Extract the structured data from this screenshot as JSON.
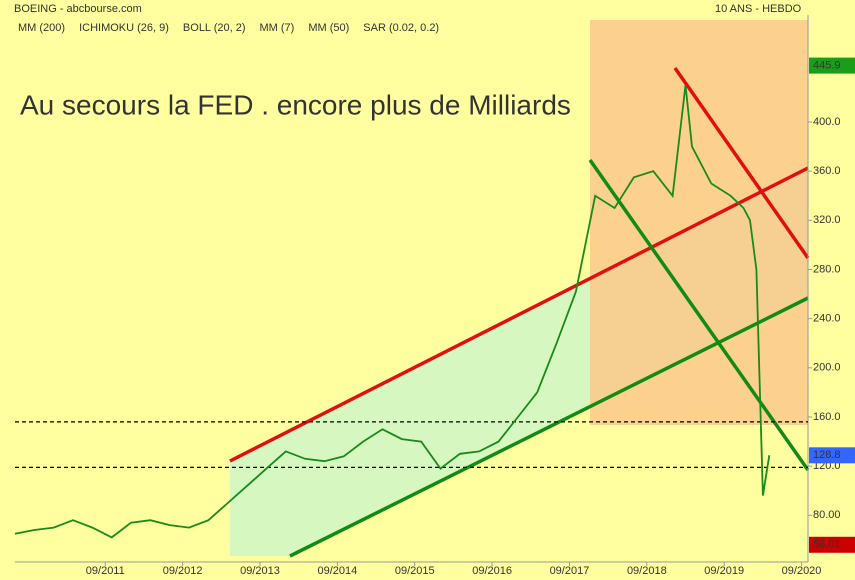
{
  "chart_data": {
    "type": "line",
    "title": "BOEING - abcbourse.com",
    "subtitle": "10 ANS - HEBDO",
    "annotation": "Au secours la FED . encore plus de Milliards",
    "indicators": [
      {
        "name": "MM (200)",
        "color": "#0000cc"
      },
      {
        "name": "ICHIMOKU (26, 9)",
        "color": "#1a1aa0"
      },
      {
        "name": "BOLL (20, 2)",
        "color": "#f0a030"
      },
      {
        "name": "MM (7)",
        "color": "#118811"
      },
      {
        "name": "MM (50)",
        "color": "#dd0000"
      },
      {
        "name": "SAR (0.02, 0.2)",
        "color": "#cc0000"
      }
    ],
    "x": [
      "07/2010",
      "10/2010",
      "01/2011",
      "04/2011",
      "07/2011",
      "10/2011",
      "01/2012",
      "04/2012",
      "07/2012",
      "10/2012",
      "01/2013",
      "04/2013",
      "07/2013",
      "10/2013",
      "01/2014",
      "04/2014",
      "07/2014",
      "10/2014",
      "01/2015",
      "04/2015",
      "07/2015",
      "10/2015",
      "01/2016",
      "04/2016",
      "07/2016",
      "10/2016",
      "01/2017",
      "04/2017",
      "07/2017",
      "10/2017",
      "01/2018",
      "04/2018",
      "07/2018",
      "10/2018",
      "01/2019",
      "03/2019",
      "04/2019",
      "07/2019",
      "10/2019",
      "12/2019",
      "01/2020",
      "02/2020",
      "03/2020",
      "04/2020"
    ],
    "series": [
      {
        "color": "#1a8a1a",
        "values": [
          65,
          68,
          70,
          76,
          70,
          62,
          74,
          76,
          72,
          70,
          76,
          90,
          104,
          118,
          132,
          126,
          124,
          128,
          140,
          150,
          142,
          140,
          118,
          130,
          132,
          140,
          160,
          180,
          220,
          262,
          340,
          330,
          355,
          360,
          340,
          430,
          380,
          350,
          340,
          330,
          320,
          280,
          96,
          128.8
        ]
      }
    ],
    "price_labels": [
      {
        "value": 445.9,
        "color": "#1a9e1a"
      },
      {
        "value": 128.8,
        "color": "#3366ff"
      },
      {
        "value": 56.01,
        "color": "#cc0000"
      }
    ],
    "levels": [
      156,
      119
    ],
    "xlim": [
      "07/2010",
      "10/2020"
    ],
    "xticks": [
      "09/2011",
      "09/2012",
      "09/2013",
      "09/2014",
      "09/2015",
      "09/2016",
      "09/2017",
      "09/2018",
      "09/2019",
      "09/2020"
    ],
    "ylim": [
      42,
      483
    ],
    "yticks": [
      {
        "value": 80,
        "label": "80.00"
      },
      {
        "value": 120,
        "label": "120.0"
      },
      {
        "value": 160,
        "label": "160.0"
      },
      {
        "value": 200,
        "label": "200.0"
      },
      {
        "value": 240,
        "label": "240.0"
      },
      {
        "value": 280,
        "label": "280.0"
      },
      {
        "value": 320,
        "label": "320.0"
      },
      {
        "value": 360,
        "label": "360.0"
      },
      {
        "value": 400,
        "label": "400.0"
      }
    ]
  }
}
